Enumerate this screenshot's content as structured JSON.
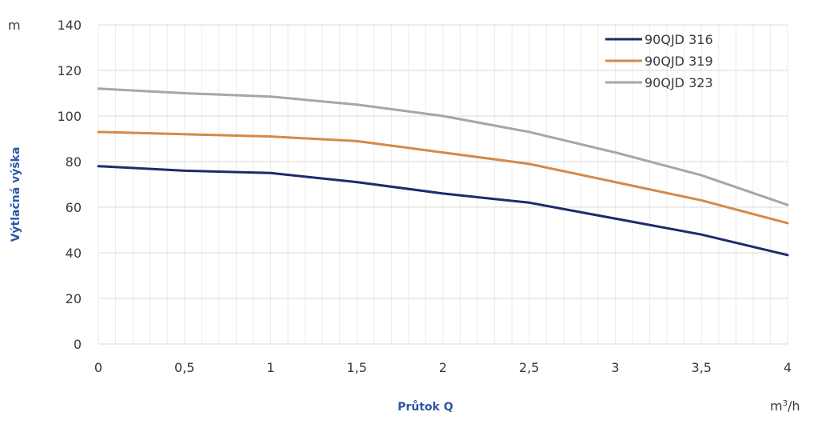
{
  "chart_data": {
    "type": "line",
    "xlabel": "Průtok Q",
    "ylabel": "Výtlačná výška",
    "y_unit": "m",
    "x_unit_base": "m",
    "x_unit_exp": "3",
    "x_unit_tail": "/h",
    "x": [
      0,
      0.5,
      1,
      1.5,
      2,
      2.5,
      3,
      3.5,
      4
    ],
    "x_tick_labels": [
      "0",
      "0,5",
      "1",
      "1,5",
      "2",
      "2,5",
      "3",
      "3,5",
      "4"
    ],
    "y_ticks": [
      0,
      20,
      40,
      60,
      80,
      100,
      120,
      140
    ],
    "y_tick_labels": [
      "0",
      "20",
      "40",
      "60",
      "80",
      "100",
      "120",
      "140"
    ],
    "xlim": [
      0,
      4
    ],
    "ylim": [
      0,
      140
    ],
    "grid": "on",
    "legend_position": "top-right",
    "series": [
      {
        "name": "90QJD 316",
        "color": "#1f2a6b",
        "values": [
          78,
          76,
          75,
          71,
          66,
          62,
          55,
          48,
          39
        ]
      },
      {
        "name": "90QJD 319",
        "color": "#d4894a",
        "values": [
          93,
          92,
          91,
          89,
          84,
          79,
          71,
          63,
          53
        ]
      },
      {
        "name": "90QJD 323",
        "color": "#a6a6a6",
        "values": [
          112,
          110,
          108.5,
          105,
          100,
          93,
          84,
          74,
          61
        ]
      }
    ]
  }
}
